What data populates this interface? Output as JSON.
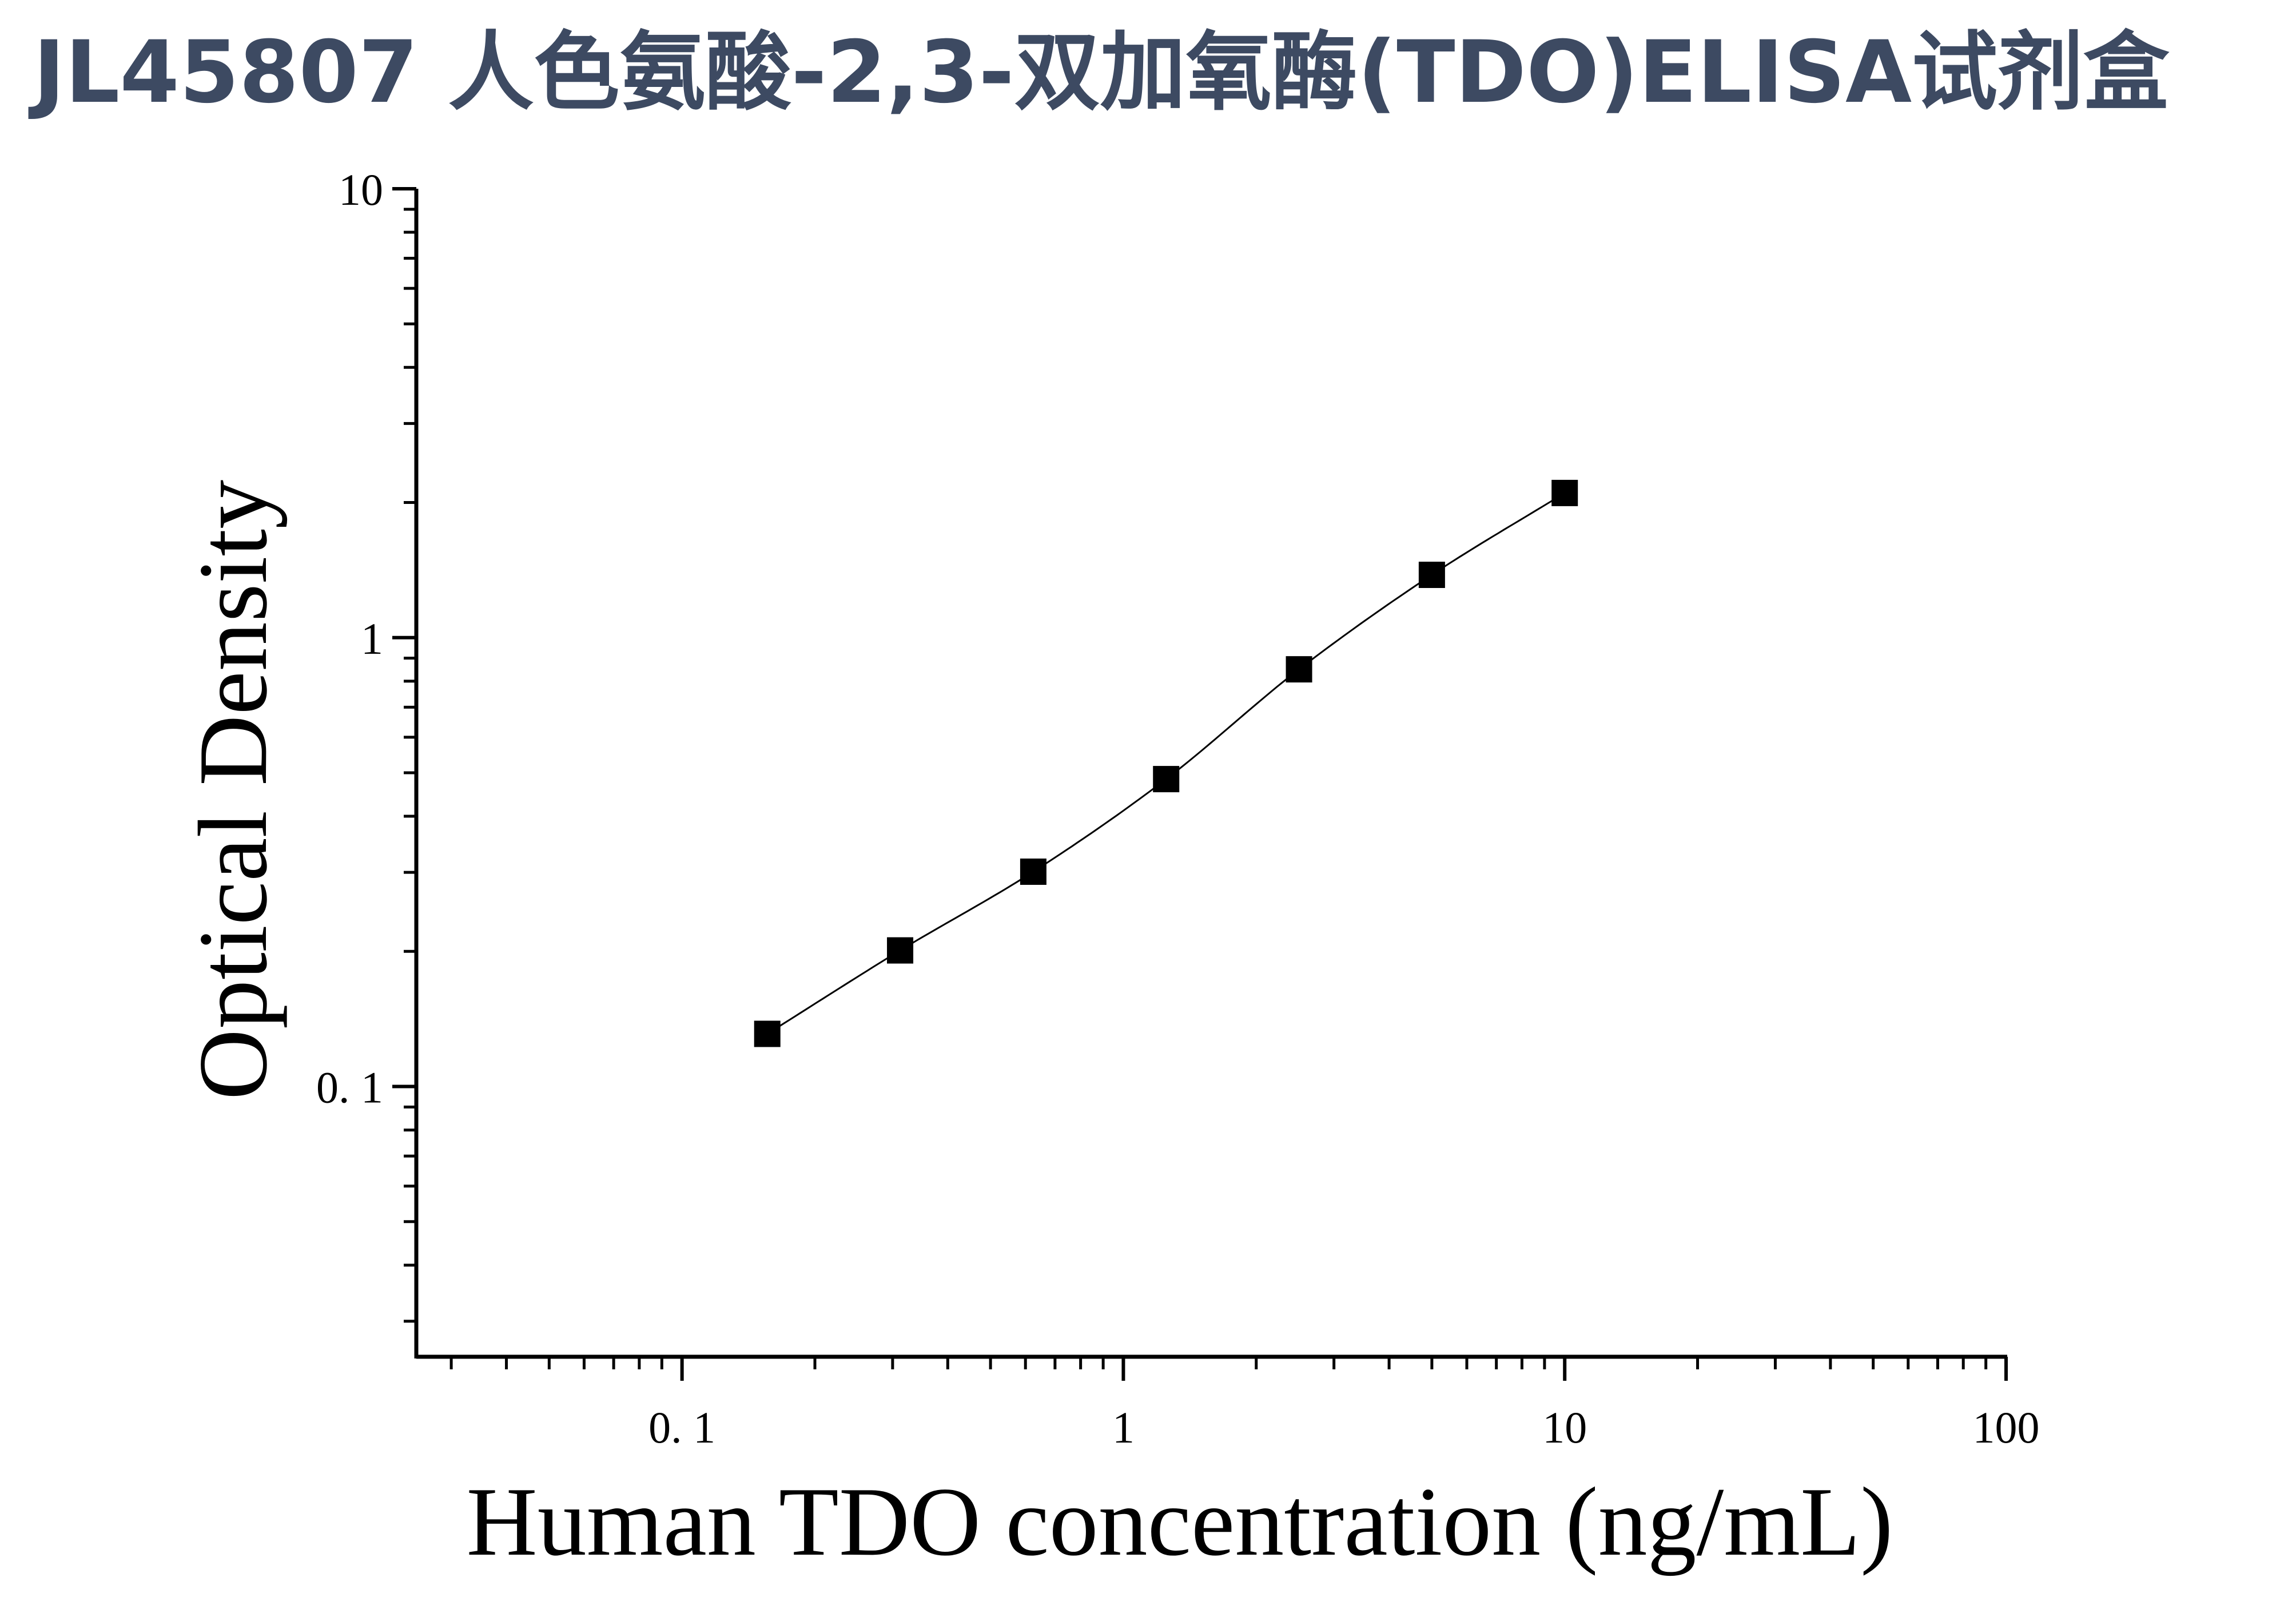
{
  "title": "JL45807 人色氨酸-2,3-双加氧酶(TDO)ELISA试剂盒",
  "chart_data": {
    "type": "scatter",
    "xlabel": "Human TDO concentration (ng/mL)",
    "ylabel": "Optical Density",
    "xscale": "log",
    "yscale": "log",
    "xlim": [
      0.025,
      100
    ],
    "ylim": [
      0.025,
      10
    ],
    "x_ticks": [
      0.1,
      1,
      10,
      100
    ],
    "x_tick_labels": [
      "0. 1",
      "1",
      "10",
      "100"
    ],
    "y_ticks": [
      0.1,
      1,
      10
    ],
    "y_tick_labels": [
      "0. 1",
      "1",
      "10"
    ],
    "grid": false,
    "fit_curve": true,
    "series": [
      {
        "marker": "square",
        "x": [
          0.156,
          0.312,
          0.625,
          1.25,
          2.5,
          5,
          10
        ],
        "y": [
          0.131,
          0.201,
          0.301,
          0.484,
          0.85,
          1.38,
          2.1
        ]
      }
    ],
    "colors": {
      "marker": "#000000",
      "curve": "#000000",
      "axis": "#000000",
      "title": "#3d4a62"
    }
  }
}
